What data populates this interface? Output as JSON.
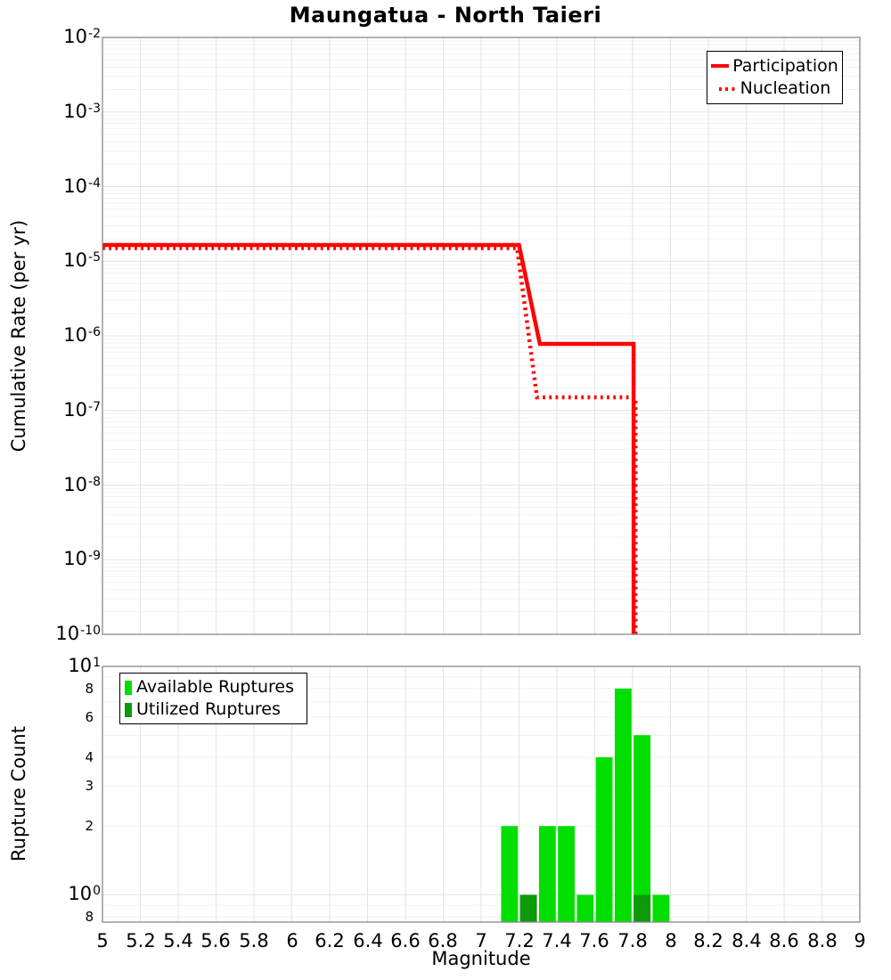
{
  "title": "Maungatua - North Taieri",
  "axes": {
    "x_label": "Magnitude",
    "top_y_label": "Cumulative Rate (per yr)",
    "bottom_y_label": "Rupture Count"
  },
  "colors": {
    "rate_line": "#ff0000",
    "available_green": "#00df00",
    "utilized_green": "#0a9a0a",
    "grid_major": "#e3e3e3",
    "grid_minor": "#f1f1f1",
    "plot_border": "#888888"
  },
  "chart_data": [
    {
      "type": "line",
      "name": "cumulative-rate-plot",
      "ylabel": "Cumulative Rate (per yr)",
      "xlabel": "Magnitude",
      "xlim": [
        5,
        9
      ],
      "ylim": [
        1e-10,
        0.01
      ],
      "y_scale": "log",
      "grid": true,
      "legend_position": "top-right",
      "y_ticks": [
        {
          "base": "10",
          "exp": "-2",
          "v": 0.01
        },
        {
          "base": "10",
          "exp": "-3",
          "v": 0.001
        },
        {
          "base": "10",
          "exp": "-4",
          "v": 0.0001
        },
        {
          "base": "10",
          "exp": "-5",
          "v": 1e-05
        },
        {
          "base": "10",
          "exp": "-6",
          "v": 1e-06
        },
        {
          "base": "10",
          "exp": "-7",
          "v": 1e-07
        },
        {
          "base": "10",
          "exp": "-8",
          "v": 1e-08
        },
        {
          "base": "10",
          "exp": "-9",
          "v": 1e-09
        },
        {
          "base": "10",
          "exp": "-10",
          "v": 1e-10
        }
      ],
      "series": [
        {
          "name": "Participation",
          "style": "solid",
          "color": "#ff0000",
          "points": [
            [
              5.0,
              1.65e-05
            ],
            [
              7.2,
              1.65e-05
            ],
            [
              7.31,
              7.8e-07
            ],
            [
              7.805,
              7.8e-07
            ],
            [
              7.805,
              1e-10
            ]
          ]
        },
        {
          "name": "Nucleation",
          "style": "dotted",
          "color": "#ff0000",
          "points": [
            [
              5.0,
              1.5e-05
            ],
            [
              7.19,
              1.5e-05
            ],
            [
              7.295,
              1.5e-07
            ],
            [
              7.815,
              1.5e-07
            ],
            [
              7.815,
              1e-10
            ]
          ]
        }
      ]
    },
    {
      "type": "bar",
      "name": "rupture-count-plot",
      "ylabel": "Rupture Count",
      "xlabel": "Magnitude",
      "xlim": [
        5,
        9
      ],
      "ylim": [
        0.76,
        10
      ],
      "y_scale": "log",
      "grid": true,
      "legend_position": "top-left",
      "bin_width": 0.1,
      "y_ticks": [
        {
          "base": "10",
          "exp": "1",
          "v": 10
        },
        {
          "label": "8",
          "v": 8
        },
        {
          "label": "6",
          "v": 6
        },
        {
          "label": "4",
          "v": 4
        },
        {
          "label": "3",
          "v": 3
        },
        {
          "label": "2",
          "v": 2
        },
        {
          "base": "10",
          "exp": "0",
          "v": 1
        },
        {
          "label": "8",
          "v": 0.8
        }
      ],
      "x_ticks": [
        {
          "v": 5,
          "label": "5"
        },
        {
          "v": 5.2,
          "label": "5.2"
        },
        {
          "v": 5.4,
          "label": "5.4"
        },
        {
          "v": 5.6,
          "label": "5.6"
        },
        {
          "v": 5.8,
          "label": "5.8"
        },
        {
          "v": 6,
          "label": "6"
        },
        {
          "v": 6.2,
          "label": "6.2"
        },
        {
          "v": 6.4,
          "label": "6.4"
        },
        {
          "v": 6.6,
          "label": "6.6"
        },
        {
          "v": 6.8,
          "label": "6.8"
        },
        {
          "v": 7,
          "label": "7"
        },
        {
          "v": 7.2,
          "label": "7.2"
        },
        {
          "v": 7.4,
          "label": "7.4"
        },
        {
          "v": 7.6,
          "label": "7.6"
        },
        {
          "v": 7.8,
          "label": "7.8"
        },
        {
          "v": 8,
          "label": "8"
        },
        {
          "v": 8.2,
          "label": "8.2"
        },
        {
          "v": 8.4,
          "label": "8.4"
        },
        {
          "v": 8.6,
          "label": "8.6"
        },
        {
          "v": 8.8,
          "label": "8.8"
        },
        {
          "v": 9,
          "label": "9"
        }
      ],
      "series": [
        {
          "name": "Available Ruptures",
          "color": "#00df00",
          "bins": [
            [
              7.1,
              2
            ],
            [
              7.2,
              1
            ],
            [
              7.3,
              2
            ],
            [
              7.4,
              2
            ],
            [
              7.5,
              1
            ],
            [
              7.6,
              4
            ],
            [
              7.7,
              8
            ],
            [
              7.8,
              5
            ],
            [
              7.9,
              1
            ]
          ]
        },
        {
          "name": "Utilized Ruptures",
          "color": "#0a9a0a",
          "bins": [
            [
              7.2,
              1
            ],
            [
              7.8,
              1
            ]
          ]
        }
      ]
    }
  ]
}
